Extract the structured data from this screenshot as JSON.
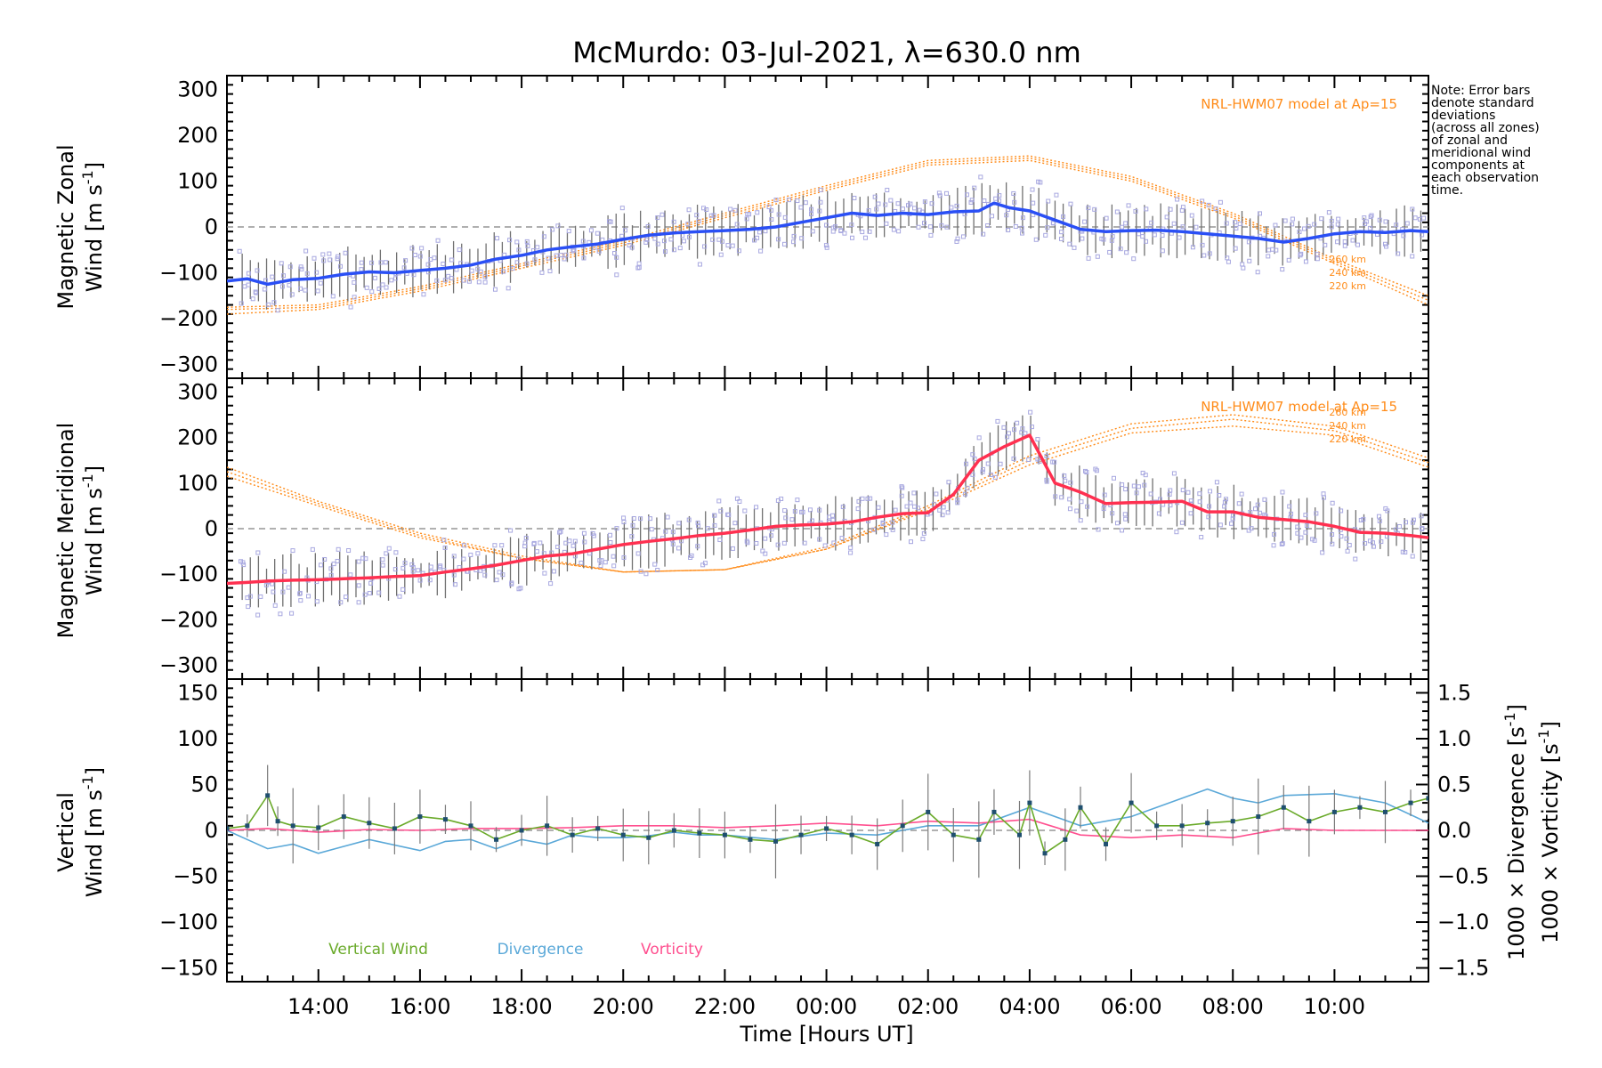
{
  "chart_data": {
    "type": "line",
    "title": "McMurdo: 03-Jul-2021, λ=630.0 nm",
    "xlabel": "Time [Hours UT]",
    "x_ticks": [
      "14:00",
      "16:00",
      "18:00",
      "20:00",
      "22:00",
      "00:00",
      "02:00",
      "04:00",
      "06:00",
      "08:00",
      "10:00"
    ],
    "x_tick_hours": [
      14,
      16,
      18,
      20,
      22,
      24,
      26,
      28,
      30,
      32,
      34
    ],
    "xlim": [
      12.2,
      35.85
    ],
    "note": [
      "Note: Error bars",
      "denote standard",
      "deviations",
      "(across all zones)",
      "of zonal and",
      "meridional wind",
      "components at",
      "each observation",
      "time."
    ],
    "colors": {
      "zonal": "#2a4ff5",
      "meridional": "#ff3050",
      "model": "#ff8c1a",
      "vertical": "#6aaa2a",
      "divergence": "#5aa8d8",
      "vorticity": "#ff4f8f",
      "scatter": "#a8a8e0",
      "errorbar": "#707070"
    },
    "panels": {
      "zonal": {
        "ylabel_line1": "Magnetic Zonal",
        "ylabel_line2": "Wind [m s",
        "ylabel_exp": "-1",
        "ylabel_close": "]",
        "ylim": [
          -330,
          330
        ],
        "yticks": [
          -300,
          -200,
          -100,
          0,
          100,
          200,
          300
        ],
        "model_label": "NRL-HWM07 model at Ap=15",
        "model_alt_labels": [
          "260 km",
          "240 km",
          "220 km"
        ],
        "series": {
          "name": "Magnetic Zonal Wind",
          "x": [
            12.2,
            12.6,
            13.0,
            13.5,
            14.0,
            14.5,
            15.0,
            15.5,
            16.0,
            16.5,
            17.0,
            17.5,
            18.0,
            18.5,
            19.0,
            19.5,
            20.0,
            20.5,
            21.0,
            21.5,
            22.0,
            22.5,
            23.0,
            23.5,
            24.0,
            24.5,
            25.0,
            25.5,
            26.0,
            26.5,
            27.0,
            27.3,
            27.6,
            28.0,
            28.5,
            29.0,
            29.5,
            30.0,
            30.5,
            31.0,
            31.5,
            32.0,
            32.5,
            33.0,
            33.5,
            34.0,
            34.5,
            35.0,
            35.5,
            35.85
          ],
          "y": [
            -118,
            -113,
            -125,
            -115,
            -112,
            -103,
            -98,
            -100,
            -95,
            -90,
            -83,
            -70,
            -62,
            -50,
            -43,
            -37,
            -27,
            -18,
            -13,
            -10,
            -8,
            -5,
            0,
            10,
            20,
            30,
            25,
            30,
            27,
            33,
            35,
            52,
            42,
            35,
            15,
            -5,
            -10,
            -8,
            -7,
            -10,
            -15,
            -20,
            -25,
            -33,
            -25,
            -15,
            -10,
            -12,
            -8,
            -10
          ]
        },
        "model": {
          "x": [
            12.2,
            14,
            16,
            18,
            20,
            22,
            24,
            26,
            28,
            30,
            32,
            34,
            35.85
          ],
          "curves": [
            {
              "alt": "260 km",
              "y": [
                -190,
                -180,
                -140,
                -90,
                -40,
                20,
                80,
                135,
                145,
                100,
                20,
                -80,
                -170
              ]
            },
            {
              "alt": "240 km",
              "y": [
                -180,
                -175,
                -135,
                -85,
                -35,
                25,
                85,
                140,
                150,
                105,
                25,
                -75,
                -160
              ]
            },
            {
              "alt": "220 km",
              "y": [
                -175,
                -170,
                -130,
                -80,
                -30,
                30,
                90,
                145,
                155,
                110,
                30,
                -70,
                -150
              ]
            }
          ]
        }
      },
      "meridional": {
        "ylabel_line1": "Magnetic Meridional",
        "ylabel_line2": "Wind [m s",
        "ylabel_exp": "-1",
        "ylabel_close": "]",
        "ylim": [
          -330,
          330
        ],
        "yticks": [
          -300,
          -200,
          -100,
          0,
          100,
          200,
          300
        ],
        "model_label": "NRL-HWM07 model at Ap=15",
        "model_alt_labels": [
          "260 km",
          "240 km",
          "220 km"
        ],
        "series": {
          "name": "Magnetic Meridional Wind",
          "x": [
            12.2,
            12.6,
            13.0,
            13.5,
            14.0,
            14.5,
            15.0,
            15.5,
            16.0,
            16.5,
            17.0,
            17.5,
            18.0,
            18.5,
            19.0,
            19.5,
            20.0,
            20.5,
            21.0,
            21.5,
            22.0,
            22.5,
            23.0,
            23.5,
            24.0,
            24.5,
            25.0,
            25.5,
            26.0,
            26.5,
            27.0,
            27.5,
            28.0,
            28.5,
            29.0,
            29.5,
            30.0,
            30.5,
            31.0,
            31.5,
            32.0,
            32.5,
            33.0,
            33.5,
            34.0,
            34.5,
            35.0,
            35.5,
            35.85
          ],
          "y": [
            -120,
            -118,
            -115,
            -113,
            -112,
            -110,
            -108,
            -105,
            -103,
            -95,
            -88,
            -80,
            -70,
            -60,
            -55,
            -45,
            -35,
            -28,
            -22,
            -15,
            -10,
            -3,
            5,
            8,
            10,
            15,
            25,
            33,
            35,
            75,
            150,
            180,
            205,
            100,
            80,
            55,
            57,
            58,
            60,
            37,
            37,
            25,
            20,
            15,
            5,
            -8,
            -10,
            -15,
            -20
          ]
        },
        "model": {
          "x": [
            12.2,
            14,
            16,
            18,
            20,
            22,
            24,
            26,
            28,
            30,
            32,
            34,
            35.85
          ],
          "curves": [
            {
              "alt": "260 km",
              "y": [
                135,
                60,
                -10,
                -60,
                -95,
                -90,
                -40,
                50,
                160,
                230,
                250,
                225,
                155
              ]
            },
            {
              "alt": "240 km",
              "y": [
                125,
                55,
                -15,
                -65,
                -95,
                -90,
                -45,
                45,
                150,
                220,
                240,
                215,
                145
              ]
            },
            {
              "alt": "220 km",
              "y": [
                115,
                50,
                -20,
                -65,
                -95,
                -90,
                -45,
                40,
                140,
                210,
                225,
                205,
                135
              ]
            }
          ]
        }
      },
      "vertical": {
        "ylabel_line1": "Vertical",
        "ylabel_line2": "Wind [m s",
        "ylabel_exp": "-1",
        "ylabel_close": "]",
        "ylim": [
          -165,
          165
        ],
        "yticks": [
          -150,
          -100,
          -50,
          0,
          50,
          100,
          150
        ],
        "y2lim": [
          -1.65,
          1.65
        ],
        "y2ticks": [
          -1.5,
          -1.0,
          -0.5,
          0.0,
          0.5,
          1.0,
          1.5
        ],
        "y2tick_labels": [
          "−1.5",
          "−1.0",
          "−0.5",
          "0.0",
          "0.5",
          "1.0",
          "1.5"
        ],
        "divergence_label": "1000 × Divergence [s",
        "vorticity_label": "1000 × Vorticity [s",
        "y2_exp": "-1",
        "y2_close": "]",
        "legend": [
          "Vertical Wind",
          "Divergence",
          "Vorticity"
        ],
        "vertical_wind": {
          "x": [
            12.2,
            12.6,
            13.0,
            13.2,
            13.5,
            14.0,
            14.5,
            15.0,
            15.5,
            16.0,
            16.5,
            17.0,
            17.5,
            18.0,
            18.5,
            19.0,
            19.5,
            20.0,
            20.5,
            21.0,
            21.5,
            22.0,
            22.5,
            23.0,
            23.5,
            24.0,
            24.5,
            25.0,
            25.5,
            26.0,
            26.5,
            27.0,
            27.3,
            27.8,
            28.0,
            28.3,
            28.7,
            29.0,
            29.5,
            30.0,
            30.5,
            31.0,
            31.5,
            32.0,
            32.5,
            33.0,
            33.5,
            34.0,
            34.5,
            35.0,
            35.5,
            35.85
          ],
          "y": [
            2,
            5,
            38,
            10,
            5,
            3,
            15,
            8,
            2,
            15,
            12,
            5,
            -10,
            0,
            5,
            -5,
            2,
            -5,
            -8,
            0,
            -3,
            -5,
            -10,
            -12,
            -5,
            2,
            -5,
            -15,
            5,
            20,
            -5,
            -10,
            20,
            -5,
            30,
            -25,
            -10,
            25,
            -15,
            30,
            5,
            5,
            8,
            10,
            15,
            25,
            10,
            20,
            25,
            20,
            30,
            35
          ]
        },
        "divergence": {
          "x": [
            12.2,
            12.6,
            13.0,
            13.5,
            14.0,
            15.0,
            16.0,
            16.5,
            17.0,
            17.5,
            18.0,
            18.5,
            19.0,
            19.5,
            20.0,
            20.5,
            21.0,
            21.5,
            22.0,
            23.0,
            24.0,
            25.0,
            26.0,
            27.0,
            28.0,
            29.0,
            30.0,
            31.0,
            31.5,
            32.0,
            32.5,
            33.0,
            34.0,
            35.0,
            35.85
          ],
          "y": [
            0.0,
            -0.1,
            -0.2,
            -0.15,
            -0.25,
            -0.1,
            -0.22,
            -0.12,
            -0.1,
            -0.2,
            -0.1,
            -0.15,
            -0.05,
            -0.08,
            -0.08,
            -0.06,
            -0.02,
            -0.05,
            -0.05,
            -0.1,
            -0.03,
            -0.05,
            0.05,
            0.05,
            0.25,
            0.05,
            0.15,
            0.35,
            0.45,
            0.35,
            0.3,
            0.38,
            0.4,
            0.3,
            0.08
          ]
        },
        "vorticity": {
          "x": [
            12.2,
            13.0,
            14.0,
            15.0,
            16.0,
            17.0,
            18.0,
            19.0,
            20.0,
            21.0,
            22.0,
            23.0,
            24.0,
            25.0,
            26.0,
            27.0,
            28.0,
            29.0,
            30.0,
            31.0,
            32.0,
            33.0,
            34.0,
            35.0,
            35.85
          ],
          "y": [
            0.0,
            0.02,
            -0.02,
            0.01,
            0.0,
            0.02,
            0.02,
            0.03,
            0.05,
            0.05,
            0.03,
            0.05,
            0.08,
            0.05,
            0.1,
            0.08,
            0.12,
            -0.05,
            -0.08,
            -0.05,
            -0.08,
            0.02,
            0.0,
            0.0,
            0.0
          ]
        }
      }
    }
  }
}
